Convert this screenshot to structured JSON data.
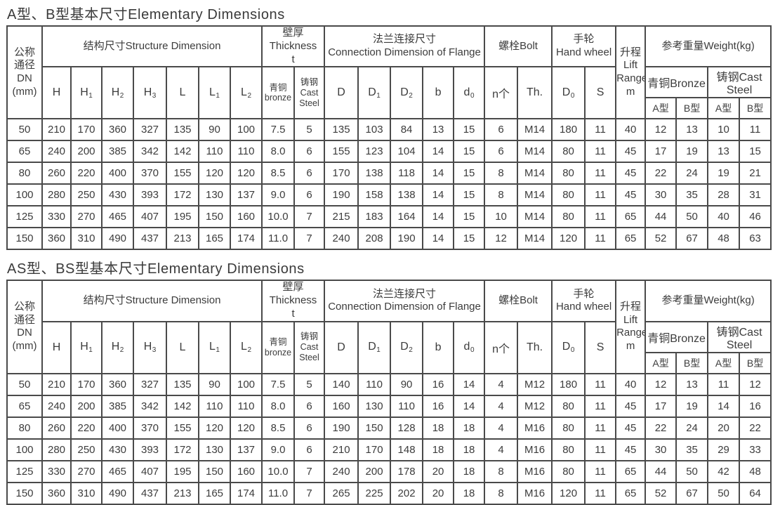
{
  "colors": {
    "background": "#ffffff",
    "text": "#3c3c3c",
    "border": "#4a4a4a"
  },
  "tables": [
    {
      "title": "A型、B型基本尺寸Elementary Dimensions",
      "header": {
        "dn": "公称\n通径\nDN\n(mm)",
        "structure": "结构尺寸Structure Dimension",
        "thickness": "壁厚\nThickness\nt",
        "flange": "法兰连接尺寸\nConnection Dimension of Flange",
        "bolt": "螺栓Bolt",
        "handwheel": "手轮\nHand wheel",
        "lift": "升程\nLift\nRange\nm",
        "weight": "参考重量Weight(kg)",
        "bronze_group": "青铜Bronze",
        "cast_group": "铸钢Cast Steel",
        "types": [
          "A型",
          "B型",
          "A型",
          "B型"
        ],
        "subcols": [
          {
            "m": "H"
          },
          {
            "m": "H",
            "s": "1"
          },
          {
            "m": "H",
            "s": "2"
          },
          {
            "m": "H",
            "s": "3"
          },
          {
            "m": "L"
          },
          {
            "m": "L",
            "s": "1"
          },
          {
            "m": "L",
            "s": "2"
          },
          {
            "m": "青铜\nbronze"
          },
          {
            "m": "铸钢\nCast\nSteel"
          },
          {
            "m": "D"
          },
          {
            "m": "D",
            "s": "1"
          },
          {
            "m": "D",
            "s": "2"
          },
          {
            "m": "b"
          },
          {
            "m": "d",
            "s": "0"
          },
          {
            "m": "n个"
          },
          {
            "m": "Th."
          },
          {
            "m": "D",
            "s": "0"
          },
          {
            "m": "S"
          }
        ]
      },
      "rows": [
        [
          "50",
          "210",
          "170",
          "360",
          "327",
          "135",
          "90",
          "100",
          "7.5",
          "5",
          "135",
          "103",
          "84",
          "13",
          "15",
          "6",
          "M14",
          "180",
          "11",
          "40",
          "12",
          "13",
          "10",
          "11"
        ],
        [
          "65",
          "240",
          "200",
          "385",
          "342",
          "142",
          "110",
          "110",
          "8.0",
          "6",
          "155",
          "123",
          "104",
          "14",
          "15",
          "6",
          "M14",
          "80",
          "11",
          "45",
          "17",
          "19",
          "13",
          "15"
        ],
        [
          "80",
          "260",
          "220",
          "400",
          "370",
          "155",
          "120",
          "120",
          "8.5",
          "6",
          "170",
          "138",
          "118",
          "14",
          "15",
          "8",
          "M14",
          "80",
          "11",
          "45",
          "22",
          "24",
          "19",
          "21"
        ],
        [
          "100",
          "280",
          "250",
          "430",
          "393",
          "172",
          "130",
          "137",
          "9.0",
          "6",
          "190",
          "158",
          "138",
          "14",
          "15",
          "8",
          "M14",
          "80",
          "11",
          "45",
          "30",
          "35",
          "28",
          "31"
        ],
        [
          "125",
          "330",
          "270",
          "465",
          "407",
          "195",
          "150",
          "160",
          "10.0",
          "7",
          "215",
          "183",
          "164",
          "14",
          "15",
          "10",
          "M14",
          "80",
          "11",
          "65",
          "44",
          "50",
          "40",
          "46"
        ],
        [
          "150",
          "360",
          "310",
          "490",
          "437",
          "213",
          "165",
          "174",
          "11.0",
          "7",
          "240",
          "208",
          "190",
          "14",
          "15",
          "12",
          "M14",
          "120",
          "11",
          "65",
          "52",
          "67",
          "48",
          "63"
        ]
      ]
    },
    {
      "title": "AS型、BS型基本尺寸Elementary Dimensions",
      "header": {
        "dn": "公称\n通径\nDN\n(mm)",
        "structure": "结构尺寸Structure Dimension",
        "thickness": "壁厚\nThickness\nt",
        "flange": "法兰连接尺寸\nConnection Dimension of Flange",
        "bolt": "螺栓Bolt",
        "handwheel": "手轮\nHand wheel",
        "lift": "升程\nLift\nRange\nm",
        "weight": "参考重量Weight(kg)",
        "bronze_group": "青铜Bronze",
        "cast_group": "铸钢Cast Steel",
        "types": [
          "A型",
          "B型",
          "A型",
          "B型"
        ],
        "subcols": [
          {
            "m": "H"
          },
          {
            "m": "H",
            "s": "1"
          },
          {
            "m": "H",
            "s": "2"
          },
          {
            "m": "H",
            "s": "3"
          },
          {
            "m": "L"
          },
          {
            "m": "L",
            "s": "1"
          },
          {
            "m": "L",
            "s": "2"
          },
          {
            "m": "青铜\nbronze"
          },
          {
            "m": "铸钢\nCast\nSteel"
          },
          {
            "m": "D"
          },
          {
            "m": "D",
            "s": "1"
          },
          {
            "m": "D",
            "s": "2"
          },
          {
            "m": "b"
          },
          {
            "m": "d",
            "s": "0"
          },
          {
            "m": "n个"
          },
          {
            "m": "Th."
          },
          {
            "m": "D",
            "s": "0"
          },
          {
            "m": "S"
          }
        ]
      },
      "rows": [
        [
          "50",
          "210",
          "170",
          "360",
          "327",
          "135",
          "90",
          "100",
          "7.5",
          "5",
          "140",
          "110",
          "90",
          "16",
          "14",
          "4",
          "M12",
          "180",
          "11",
          "40",
          "12",
          "13",
          "11",
          "12"
        ],
        [
          "65",
          "240",
          "200",
          "385",
          "342",
          "142",
          "110",
          "110",
          "8.0",
          "6",
          "160",
          "130",
          "110",
          "16",
          "14",
          "4",
          "M12",
          "80",
          "11",
          "45",
          "17",
          "19",
          "14",
          "16"
        ],
        [
          "80",
          "260",
          "220",
          "400",
          "370",
          "155",
          "120",
          "120",
          "8.5",
          "6",
          "190",
          "150",
          "128",
          "18",
          "18",
          "4",
          "M16",
          "80",
          "11",
          "45",
          "22",
          "24",
          "20",
          "22"
        ],
        [
          "100",
          "280",
          "250",
          "430",
          "393",
          "172",
          "130",
          "137",
          "9.0",
          "6",
          "210",
          "170",
          "148",
          "18",
          "18",
          "4",
          "M16",
          "80",
          "11",
          "45",
          "30",
          "35",
          "29",
          "33"
        ],
        [
          "125",
          "330",
          "270",
          "465",
          "407",
          "195",
          "150",
          "160",
          "10.0",
          "7",
          "240",
          "200",
          "178",
          "20",
          "18",
          "8",
          "M16",
          "80",
          "11",
          "65",
          "44",
          "50",
          "42",
          "48"
        ],
        [
          "150",
          "360",
          "310",
          "490",
          "437",
          "213",
          "165",
          "174",
          "11.0",
          "7",
          "265",
          "225",
          "202",
          "20",
          "18",
          "8",
          "M16",
          "120",
          "11",
          "65",
          "52",
          "67",
          "50",
          "64"
        ]
      ]
    }
  ]
}
